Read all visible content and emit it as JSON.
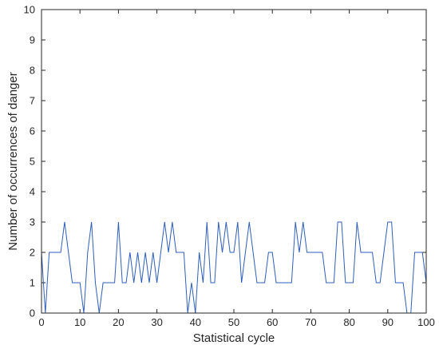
{
  "chart_data": {
    "type": "line",
    "title": "",
    "xlabel": "Statistical cycle",
    "ylabel": "Number of occurrences of danger",
    "xlim": [
      0,
      100
    ],
    "ylim": [
      0,
      10
    ],
    "xticks": [
      0,
      10,
      20,
      30,
      40,
      50,
      60,
      70,
      80,
      90,
      100
    ],
    "yticks": [
      0,
      1,
      2,
      3,
      4,
      5,
      6,
      7,
      8,
      9,
      10
    ],
    "grid": false,
    "legend": "none",
    "series_color": "#2f5fb8",
    "series": [
      {
        "x": [
          0,
          1,
          2,
          3,
          4,
          5,
          6,
          7,
          8,
          9,
          10,
          11,
          12,
          13,
          14,
          15,
          16,
          17,
          18,
          19,
          20,
          21,
          22,
          23,
          24,
          25,
          26,
          27,
          28,
          29,
          30,
          31,
          32,
          33,
          34,
          35,
          36,
          37,
          38,
          39,
          40,
          41,
          42,
          43,
          44,
          45,
          46,
          47,
          48,
          49,
          50,
          51,
          52,
          53,
          54,
          55,
          56,
          57,
          58,
          59,
          60,
          61,
          62,
          63,
          64,
          65,
          66,
          67,
          68,
          69,
          70,
          71,
          72,
          73,
          74,
          75,
          76,
          77,
          78,
          79,
          80,
          81,
          82,
          83,
          84,
          85,
          86,
          87,
          88,
          89,
          90,
          91,
          92,
          93,
          94,
          95,
          96,
          97,
          98,
          99,
          100
        ],
        "values": [
          2,
          0,
          2,
          2,
          2,
          2,
          3,
          2,
          1,
          1,
          1,
          0,
          2,
          3,
          1,
          0,
          1,
          1,
          1,
          1,
          3,
          1,
          1,
          2,
          1,
          2,
          1,
          2,
          1,
          2,
          1,
          2,
          3,
          2,
          3,
          2,
          2,
          2,
          0,
          1,
          0,
          2,
          1,
          3,
          1,
          1,
          3,
          2,
          3,
          2,
          2,
          3,
          1,
          2,
          3,
          2,
          1,
          1,
          1,
          2,
          2,
          1,
          1,
          1,
          1,
          1,
          3,
          2,
          3,
          2,
          2,
          2,
          2,
          2,
          1,
          1,
          1,
          3,
          3,
          1,
          1,
          1,
          3,
          2,
          2,
          2,
          2,
          1,
          1,
          2,
          3,
          3,
          1,
          1,
          1,
          0,
          0,
          2,
          2,
          2,
          1
        ]
      }
    ]
  }
}
